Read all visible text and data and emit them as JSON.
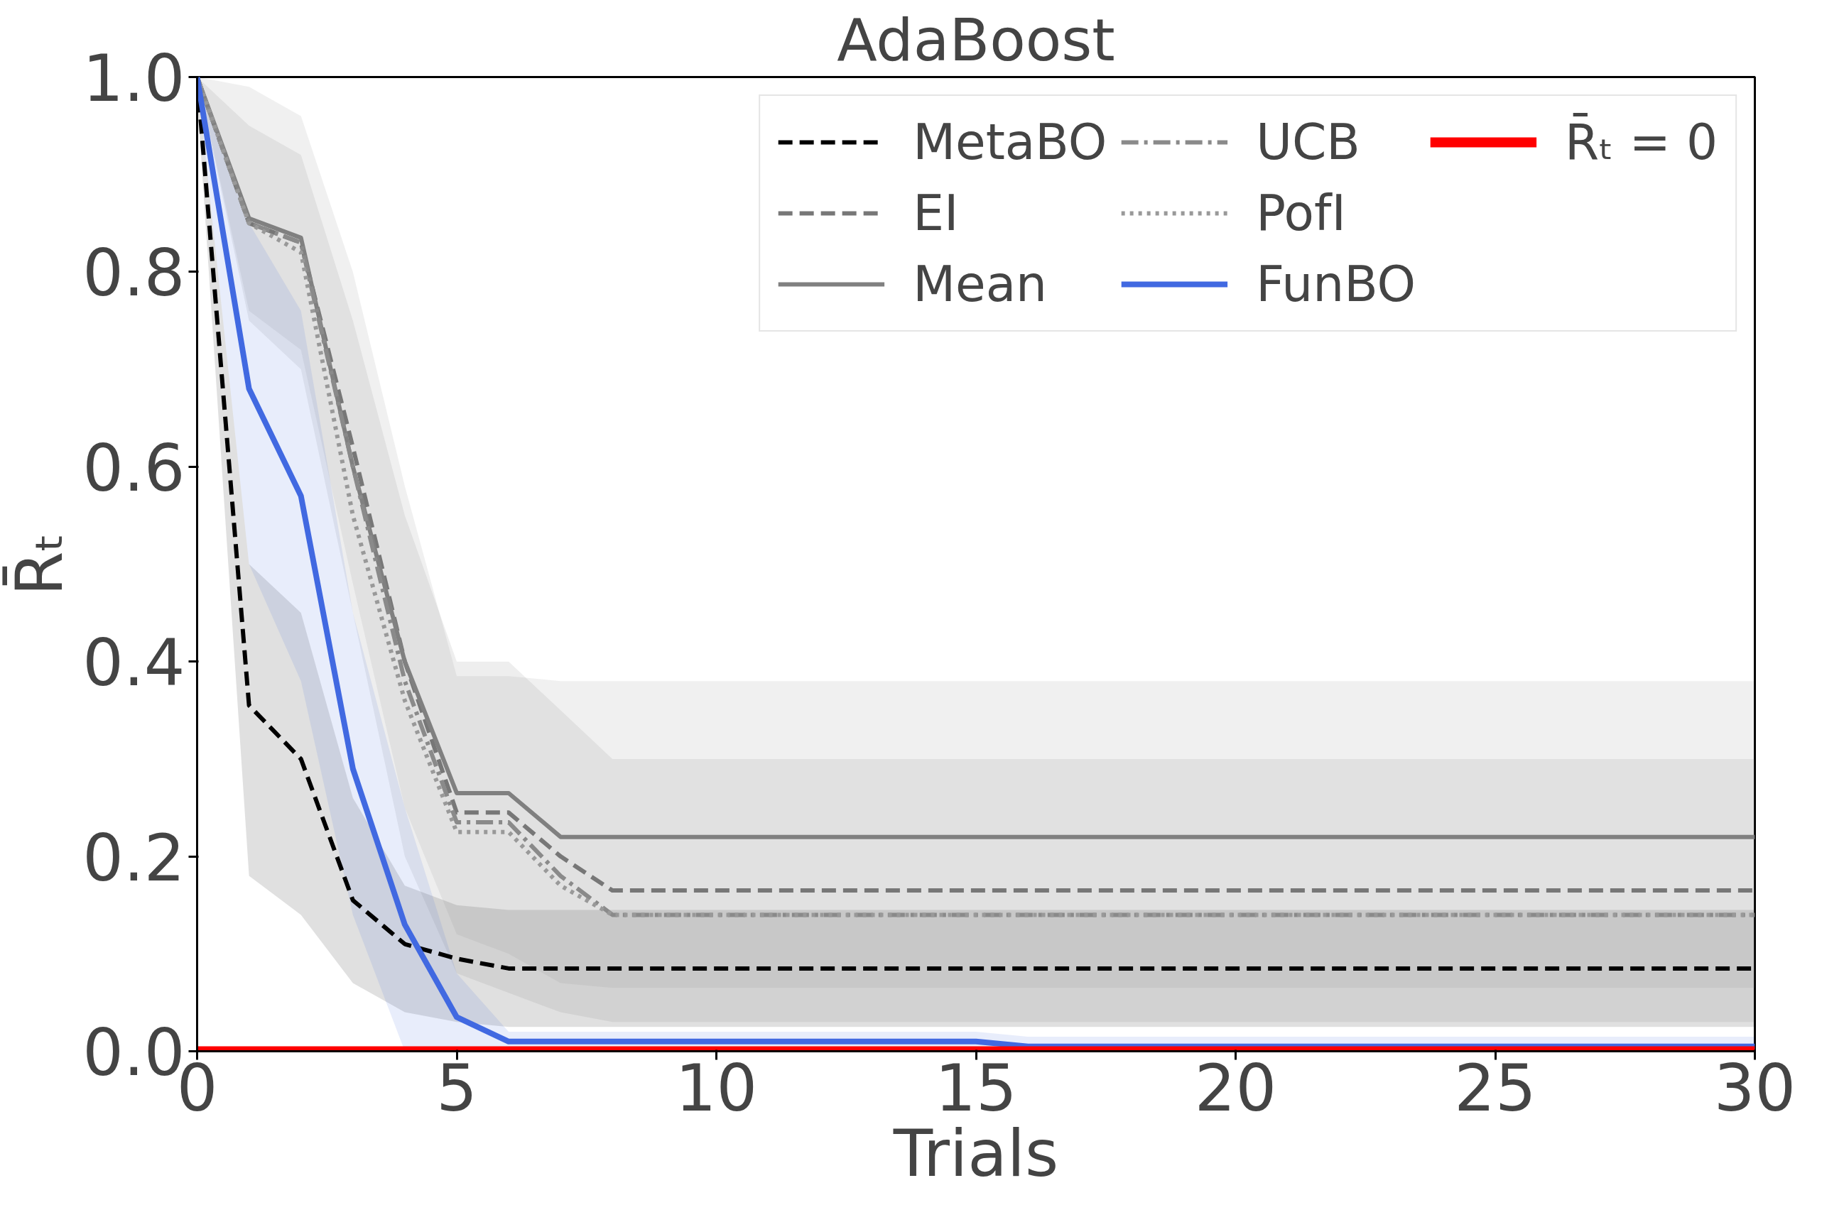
{
  "chart_data": {
    "type": "line",
    "title": "AdaBoost",
    "xlabel": "Trials",
    "ylabel": "R̄ₜ",
    "x": [
      0,
      1,
      2,
      3,
      4,
      5,
      6,
      7,
      8,
      15,
      16,
      30
    ],
    "xlim": [
      0,
      30
    ],
    "xticks": [
      0,
      5,
      10,
      15,
      20,
      25,
      30
    ],
    "ylim": [
      0,
      1
    ],
    "yticks": [
      {
        "value": 0,
        "label": "0.0"
      },
      {
        "value": 0.2,
        "label": "0.2"
      },
      {
        "value": 0.4,
        "label": "0.4"
      },
      {
        "value": 0.6,
        "label": "0.6"
      },
      {
        "value": 0.8,
        "label": "0.8"
      },
      {
        "value": 1,
        "label": "1.0"
      }
    ],
    "grid": false,
    "legend": "top right",
    "marker": "none",
    "series": [
      {
        "name": "MetaBO",
        "color": "#000000",
        "line_style": "dashed",
        "values": [
          1.0,
          0.355,
          0.3,
          0.155,
          0.11,
          0.095,
          0.085,
          0.085,
          0.085,
          0.085,
          0.085,
          0.085
        ],
        "lower": [
          0.98,
          0.18,
          0.14,
          0.07,
          0.04,
          0.03,
          0.025,
          0.025,
          0.025,
          0.025,
          0.025,
          0.025
        ],
        "upper": [
          1.0,
          0.5,
          0.45,
          0.26,
          0.17,
          0.15,
          0.145,
          0.145,
          0.145,
          0.145,
          0.145,
          0.145
        ]
      },
      {
        "name": "EI",
        "color": "#777777",
        "line_style": "dashed",
        "values": [
          1.0,
          0.85,
          0.83,
          0.62,
          0.4,
          0.245,
          0.245,
          0.2,
          0.165,
          0.165,
          0.165,
          0.165
        ],
        "lower": [
          1.0,
          0.75,
          0.7,
          0.45,
          0.2,
          0.08,
          0.06,
          0.04,
          0.03,
          0.03,
          0.03,
          0.03
        ],
        "upper": [
          1.0,
          0.95,
          0.92,
          0.75,
          0.55,
          0.4,
          0.4,
          0.35,
          0.3,
          0.3,
          0.3,
          0.3
        ]
      },
      {
        "name": "Mean",
        "color": "#808080",
        "line_style": "solid",
        "values": [
          1.0,
          0.855,
          0.835,
          0.6,
          0.4,
          0.265,
          0.265,
          0.22,
          0.22,
          0.22,
          0.22,
          0.22
        ],
        "lower": [
          1.0,
          0.76,
          0.72,
          0.48,
          0.25,
          0.12,
          0.1,
          0.07,
          0.065,
          0.065,
          0.065,
          0.065
        ],
        "upper": [
          1.0,
          0.99,
          0.96,
          0.8,
          0.58,
          0.385,
          0.385,
          0.38,
          0.38,
          0.38,
          0.38,
          0.38
        ]
      },
      {
        "name": "UCB",
        "color": "#8a8a8a",
        "line_style": "dashdot",
        "values": [
          1.0,
          0.85,
          0.83,
          0.6,
          0.38,
          0.235,
          0.235,
          0.18,
          0.14,
          0.14,
          0.14,
          0.14
        ]
      },
      {
        "name": "PofI",
        "color": "#999999",
        "line_style": "dotted",
        "values": [
          1.0,
          0.85,
          0.82,
          0.55,
          0.36,
          0.225,
          0.225,
          0.17,
          0.14,
          0.14,
          0.14,
          0.14
        ]
      },
      {
        "name": "FunBO",
        "color": "#4169e1",
        "line_style": "solid",
        "values": [
          1.0,
          0.68,
          0.57,
          0.29,
          0.13,
          0.035,
          0.01,
          0.01,
          0.01,
          0.01,
          0.005,
          0.005
        ],
        "lower": [
          1.0,
          0.5,
          0.38,
          0.14,
          0.0,
          0.0,
          0.0,
          0.0,
          0.0,
          0.0,
          0.0,
          0.0
        ],
        "upper": [
          1.0,
          0.85,
          0.76,
          0.45,
          0.25,
          0.08,
          0.02,
          0.02,
          0.02,
          0.02,
          0.015,
          0.015
        ]
      },
      {
        "name": "R̄ₜ = 0",
        "color": "#ff0000",
        "line_style": "solid",
        "values": [
          0,
          0,
          0,
          0,
          0,
          0,
          0,
          0,
          0,
          0,
          0,
          0
        ]
      }
    ]
  }
}
